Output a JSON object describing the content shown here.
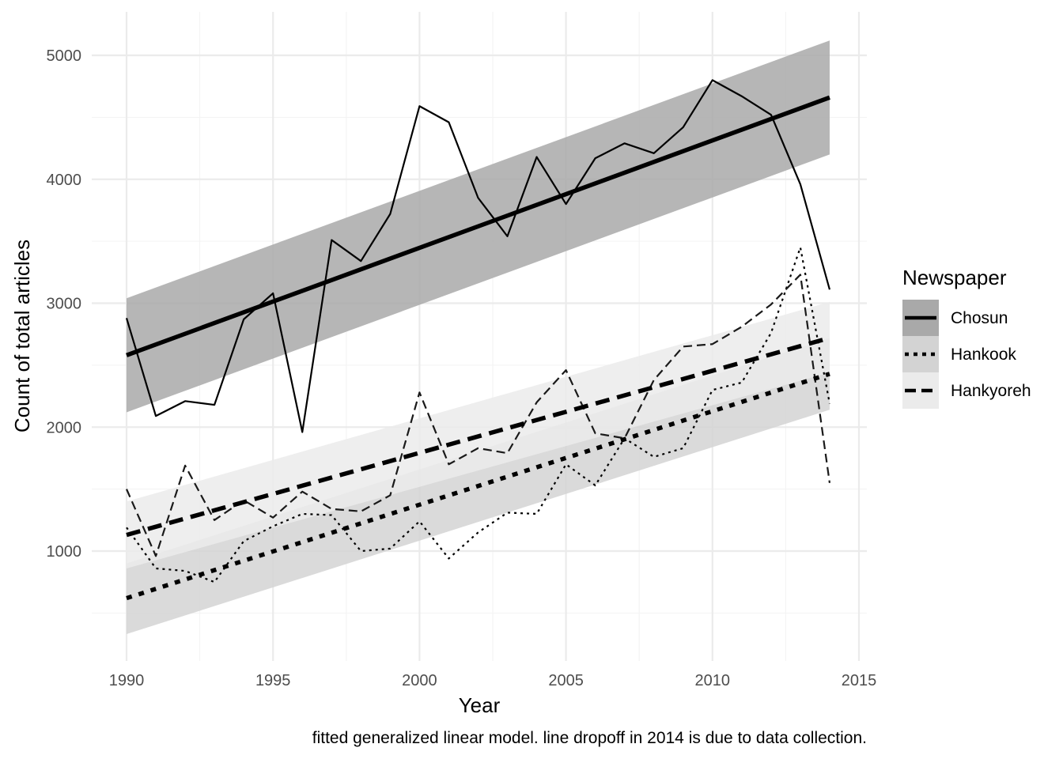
{
  "chart_data": {
    "type": "line",
    "title": "",
    "xlabel": "Year",
    "ylabel": "Count of total articles",
    "caption": "fitted generalized linear model. line dropoff in 2014 is due to data collection.",
    "xlim": [
      1989,
      2015
    ],
    "ylim": [
      250,
      5350
    ],
    "x_ticks": [
      1990,
      1995,
      2000,
      2005,
      2010,
      2015
    ],
    "y_ticks": [
      1000,
      2000,
      3000,
      4000,
      5000
    ],
    "grid": true,
    "legend": {
      "title": "Newspaper",
      "position": "right"
    },
    "x": [
      1990,
      1991,
      1992,
      1993,
      1994,
      1995,
      1996,
      1997,
      1998,
      1999,
      2000,
      2001,
      2002,
      2003,
      2004,
      2005,
      2006,
      2007,
      2008,
      2009,
      2010,
      2011,
      2012,
      2013,
      2014
    ],
    "series": [
      {
        "name": "Chosun",
        "linetype": "solid",
        "color": "#000000",
        "band_color": "#a9a9a9",
        "values": [
          2880,
          2090,
          2210,
          2180,
          2870,
          3080,
          1960,
          3510,
          3340,
          3720,
          4590,
          4460,
          3850,
          3540,
          4180,
          3800,
          4170,
          4290,
          4210,
          4420,
          4800,
          4670,
          4520,
          3960,
          3110
        ],
        "fit": {
          "x": [
            1990,
            2014
          ],
          "y": [
            2580,
            4660
          ],
          "lower": [
            2120,
            4200
          ],
          "upper": [
            3040,
            5120
          ]
        }
      },
      {
        "name": "Hankook",
        "linetype": "dotted",
        "color": "#000000",
        "band_color": "#d3d3d3",
        "values": [
          1190,
          860,
          840,
          750,
          1080,
          1200,
          1300,
          1290,
          1000,
          1020,
          1240,
          940,
          1150,
          1310,
          1300,
          1700,
          1530,
          1910,
          1760,
          1830,
          2300,
          2360,
          2760,
          3450,
          2190
        ],
        "fit": {
          "x": [
            1990,
            2014
          ],
          "y": [
            620,
            2430
          ],
          "lower": [
            330,
            2140
          ],
          "upper": [
            900,
            2720
          ]
        }
      },
      {
        "name": "Hankyoreh",
        "linetype": "dashed",
        "color": "#1a1a1a",
        "band_color": "#ebebeb",
        "values": [
          1500,
          960,
          1690,
          1250,
          1410,
          1270,
          1480,
          1340,
          1320,
          1450,
          2280,
          1700,
          1830,
          1790,
          2200,
          2460,
          1950,
          1910,
          2380,
          2650,
          2670,
          2810,
          2990,
          3230,
          1550
        ],
        "fit": {
          "x": [
            1990,
            2014
          ],
          "y": [
            1130,
            2720
          ],
          "lower": [
            860,
            2440
          ],
          "upper": [
            1400,
            3010
          ]
        }
      }
    ]
  }
}
